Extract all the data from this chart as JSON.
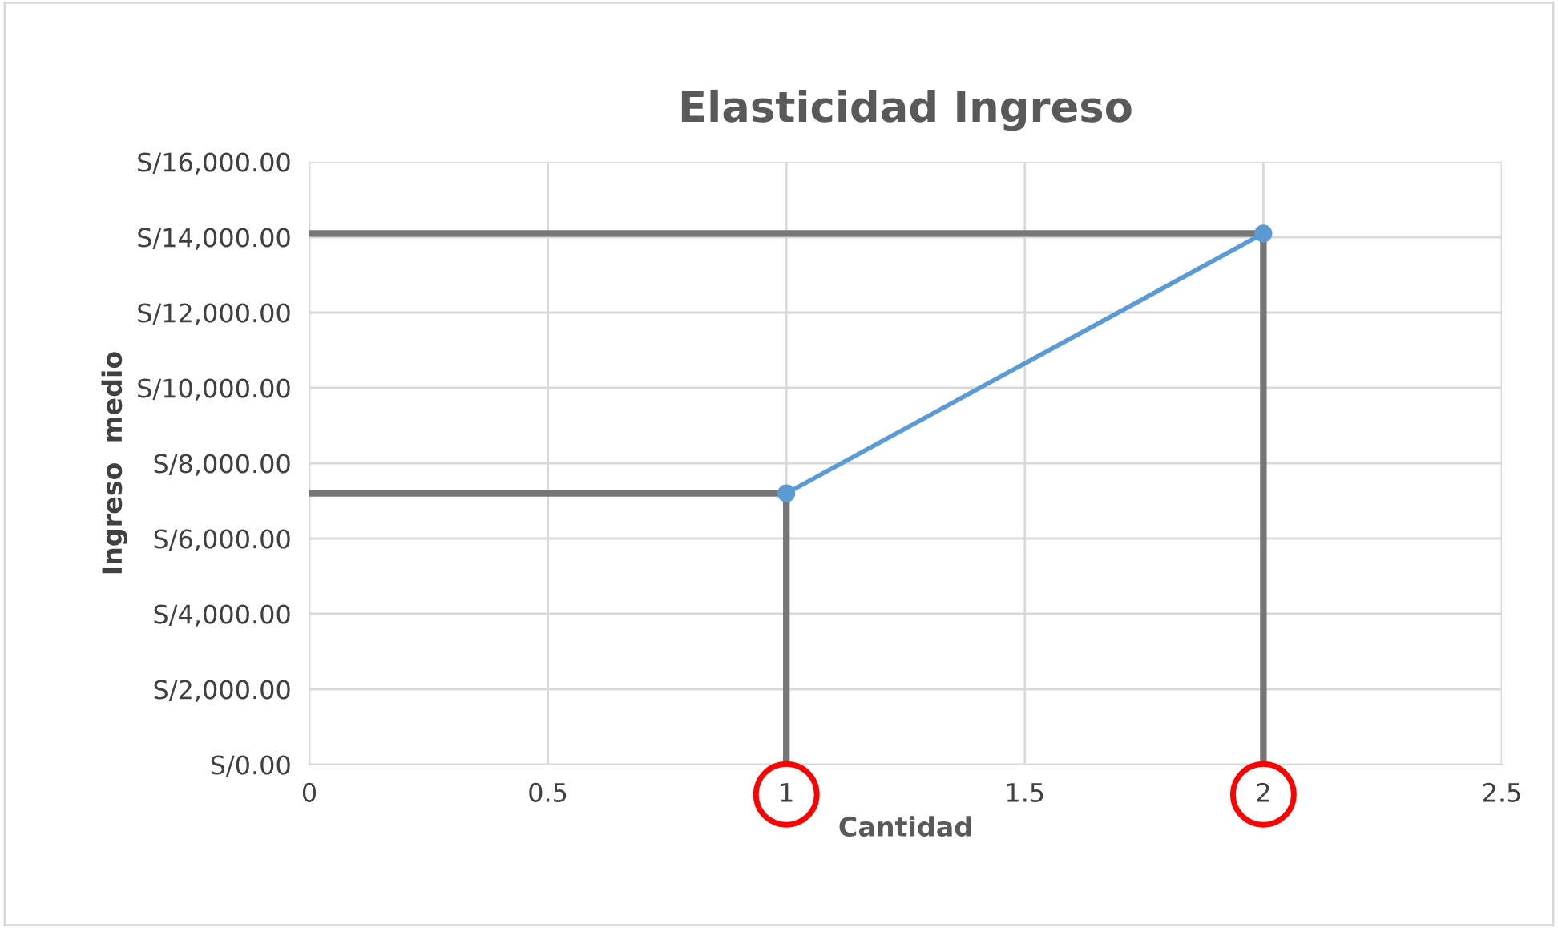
{
  "chart_data": {
    "type": "line",
    "title": "Elasticidad Ingreso",
    "xlabel": "Cantidad",
    "ylabel": "Ingreso  medio",
    "series": [
      {
        "color": "#767676",
        "x": [
          0,
          1,
          1
        ],
        "values": [
          7200,
          7200,
          0
        ],
        "marker": "none"
      },
      {
        "color": "#767676",
        "x": [
          0,
          2,
          2
        ],
        "values": [
          14100,
          14100,
          0
        ],
        "marker": "none"
      },
      {
        "color": "#5b9bd5",
        "x": [
          1,
          2
        ],
        "values": [
          7200,
          14100
        ],
        "marker": "circle"
      }
    ],
    "xlim": [
      0,
      2.5
    ],
    "xticks": [
      0,
      0.5,
      1,
      1.5,
      2,
      2.5
    ],
    "ylim": [
      0,
      16000
    ],
    "yticks": [
      {
        "value": 0,
        "label": "S/0.00"
      },
      {
        "value": 2000,
        "label": "S/2,000.00"
      },
      {
        "value": 4000,
        "label": "S/4,000.00"
      },
      {
        "value": 6000,
        "label": "S/6,000.00"
      },
      {
        "value": 8000,
        "label": "S/8,000.00"
      },
      {
        "value": 10000,
        "label": "S/10,000.00"
      },
      {
        "value": 12000,
        "label": "S/12,000.00"
      },
      {
        "value": 14000,
        "label": "S/14,000.00"
      },
      {
        "value": 16000,
        "label": "S/16,000.00"
      }
    ],
    "grid": true,
    "legend": false
  }
}
